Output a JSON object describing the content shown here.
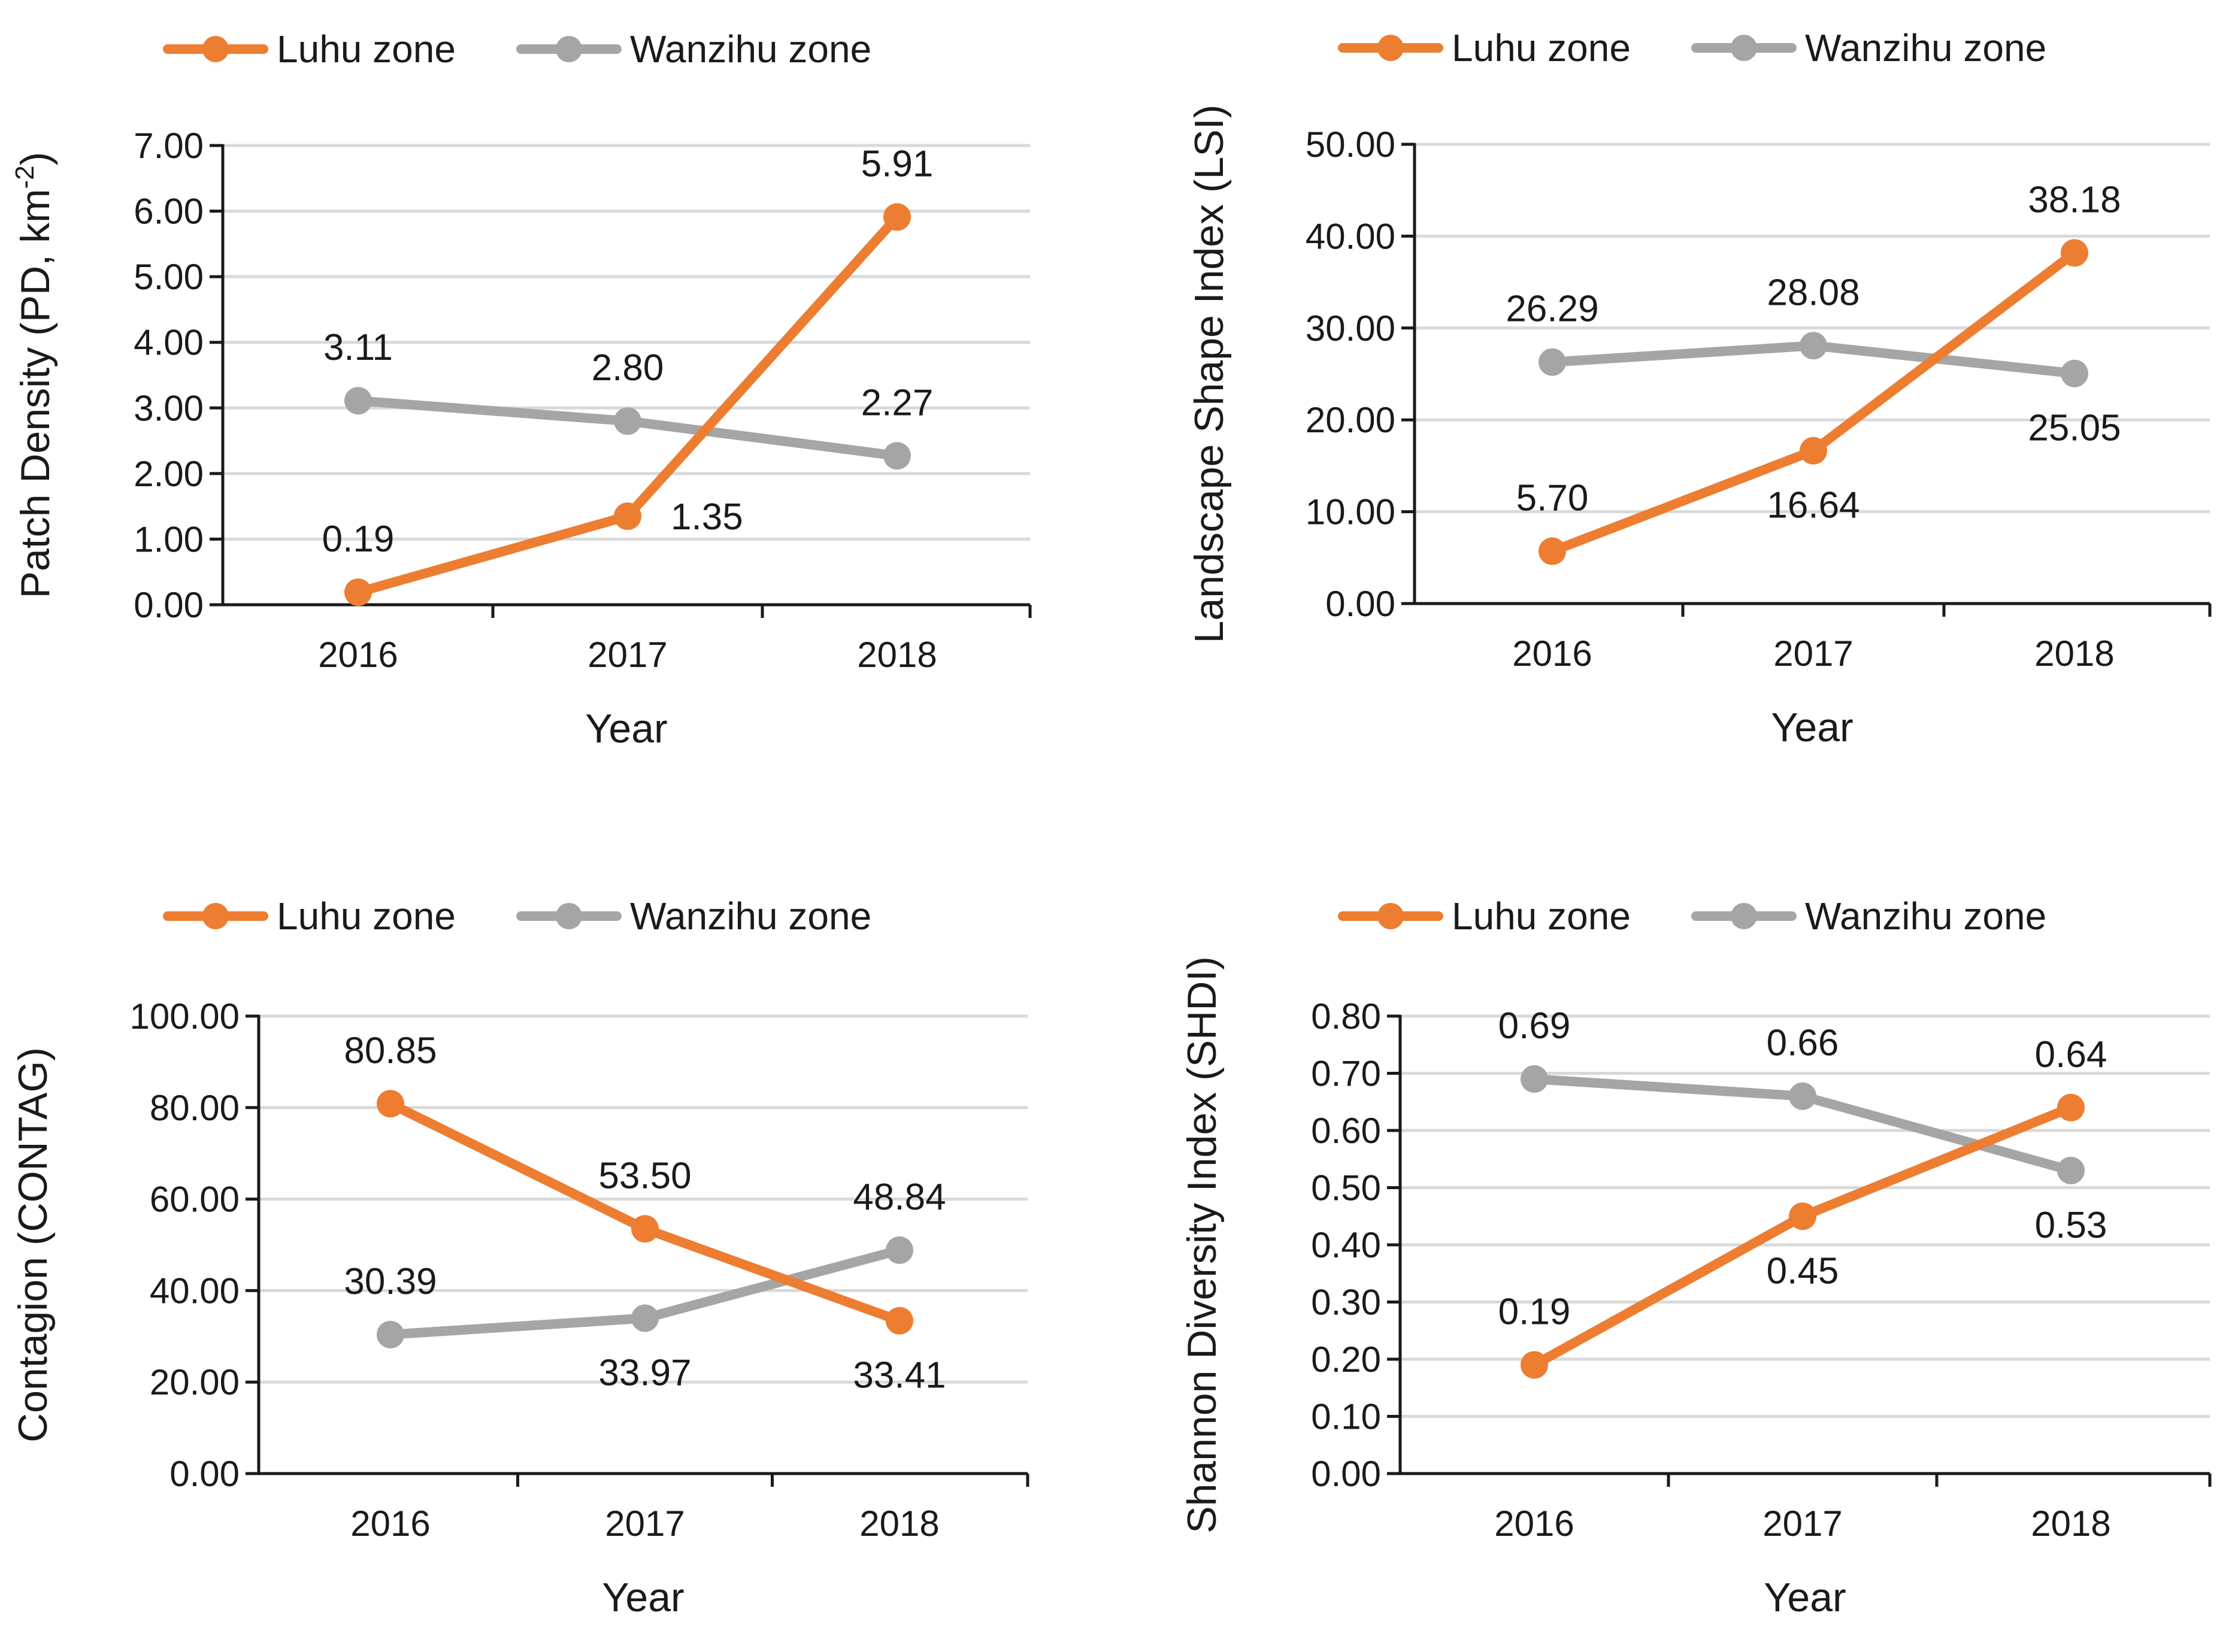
{
  "figure": {
    "colors": {
      "luhu": "#ED7D31",
      "wanzihu": "#A5A5A5",
      "grid": "#D9D9D9",
      "axis": "#1a1a1a"
    }
  },
  "chart_data": [
    {
      "type": "line",
      "title": "",
      "xlabel": "Year",
      "ylabel": "Patch Density (PD, km-2)",
      "ylabel_base": "Patch Density (PD, km",
      "ylabel_sup": "-2",
      "ylabel_tail": ")",
      "categories": [
        "2016",
        "2017",
        "2018"
      ],
      "ylim": [
        0,
        7
      ],
      "yticks": [
        "0.00",
        "1.00",
        "2.00",
        "3.00",
        "4.00",
        "5.00",
        "6.00",
        "7.00"
      ],
      "grid": true,
      "legend": "top-left",
      "series": [
        {
          "name": "Luhu zone",
          "color": "#ED7D31",
          "values": [
            0.19,
            1.35,
            5.91
          ],
          "labels": [
            "0.19",
            "1.35",
            "5.91"
          ],
          "label_pos": [
            "above",
            "right",
            "above"
          ]
        },
        {
          "name": "Wanzihu zone",
          "color": "#A5A5A5",
          "values": [
            3.11,
            2.8,
            2.27
          ],
          "labels": [
            "3.11",
            "2.80",
            "2.27"
          ],
          "label_pos": [
            "above",
            "above",
            "above"
          ]
        }
      ]
    },
    {
      "type": "line",
      "title": "",
      "xlabel": "Year",
      "ylabel": "Landscape Shape Index (LSI)",
      "categories": [
        "2016",
        "2017",
        "2018"
      ],
      "ylim": [
        0,
        50
      ],
      "yticks": [
        "0.00",
        "10.00",
        "20.00",
        "30.00",
        "40.00",
        "50.00"
      ],
      "grid": true,
      "legend": "top-left",
      "series": [
        {
          "name": "Luhu zone",
          "color": "#ED7D31",
          "values": [
            5.7,
            16.64,
            38.18
          ],
          "labels": [
            "5.70",
            "16.64",
            "38.18"
          ],
          "label_pos": [
            "above",
            "below",
            "above"
          ]
        },
        {
          "name": "Wanzihu zone",
          "color": "#A5A5A5",
          "values": [
            26.29,
            28.08,
            25.05
          ],
          "labels": [
            "26.29",
            "28.08",
            "25.05"
          ],
          "label_pos": [
            "above",
            "above",
            "below"
          ]
        }
      ]
    },
    {
      "type": "line",
      "title": "",
      "xlabel": "Year",
      "ylabel": "Contagion (CONTAG)",
      "categories": [
        "2016",
        "2017",
        "2018"
      ],
      "ylim": [
        0,
        100
      ],
      "yticks": [
        "0.00",
        "20.00",
        "40.00",
        "60.00",
        "80.00",
        "100.00"
      ],
      "grid": true,
      "legend": "top-left",
      "series": [
        {
          "name": "Luhu zone",
          "color": "#ED7D31",
          "values": [
            80.85,
            53.5,
            33.41
          ],
          "labels": [
            "80.85",
            "53.50",
            "33.41"
          ],
          "label_pos": [
            "above",
            "above",
            "below"
          ]
        },
        {
          "name": "Wanzihu zone",
          "color": "#A5A5A5",
          "values": [
            30.39,
            33.97,
            48.84
          ],
          "labels": [
            "30.39",
            "33.97",
            "48.84"
          ],
          "label_pos": [
            "above",
            "below",
            "above"
          ]
        }
      ]
    },
    {
      "type": "line",
      "title": "",
      "xlabel": "Year",
      "ylabel": "Shannon Diversity Index (SHDI)",
      "categories": [
        "2016",
        "2017",
        "2018"
      ],
      "ylim": [
        0,
        0.8
      ],
      "yticks": [
        "0.00",
        "0.10",
        "0.20",
        "0.30",
        "0.40",
        "0.50",
        "0.60",
        "0.70",
        "0.80"
      ],
      "grid": true,
      "legend": "top-left",
      "series": [
        {
          "name": "Luhu zone",
          "color": "#ED7D31",
          "values": [
            0.19,
            0.45,
            0.64
          ],
          "labels": [
            "0.19",
            "0.45",
            "0.64"
          ],
          "label_pos": [
            "above",
            "below",
            "above"
          ]
        },
        {
          "name": "Wanzihu zone",
          "color": "#A5A5A5",
          "values": [
            0.69,
            0.66,
            0.53
          ],
          "labels": [
            "0.69",
            "0.66",
            "0.53"
          ],
          "label_pos": [
            "above",
            "above",
            "below"
          ]
        }
      ]
    }
  ]
}
